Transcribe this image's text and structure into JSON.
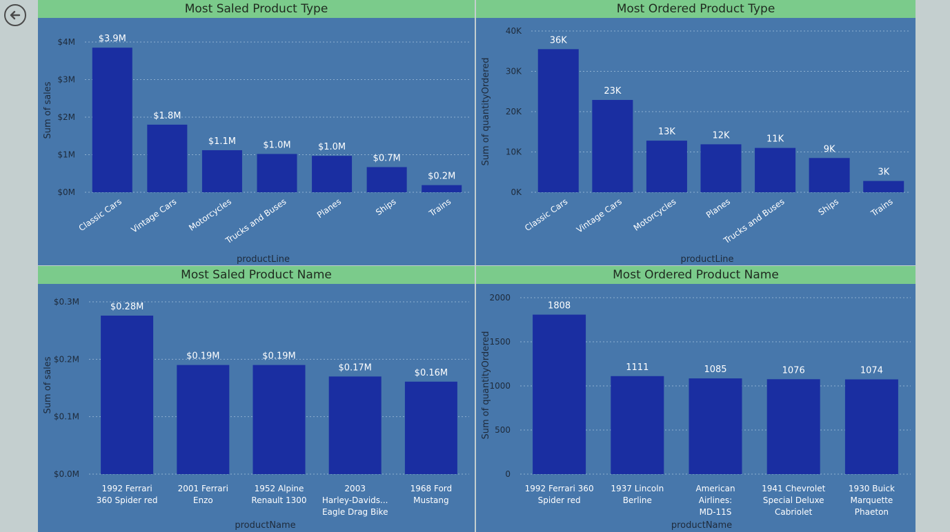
{
  "colors": {
    "bar": "#1a2ea1",
    "header": "#7bcb8b",
    "panel": "#4777ab",
    "background": "#c4cfcf"
  },
  "nav": {
    "back_icon": "back-arrow-circle-icon"
  },
  "chart_data": [
    {
      "id": "c1",
      "type": "bar",
      "title": "Most Saled Product Type",
      "xlabel": "productLine",
      "ylabel": "Sum of sales",
      "ylim": [
        0,
        4
      ],
      "yticks": [
        0,
        1,
        2,
        3,
        4
      ],
      "ytick_labels": [
        "$0M",
        "$1M",
        "$2M",
        "$3M",
        "$4M"
      ],
      "categories": [
        "Classic Cars",
        "Vintage Cars",
        "Motorcycles",
        "Trucks and Buses",
        "Planes",
        "Ships",
        "Trains"
      ],
      "values": [
        3.85,
        1.8,
        1.12,
        1.02,
        0.97,
        0.67,
        0.19
      ],
      "data_labels": [
        "$3.9M",
        "$1.8M",
        "$1.1M",
        "$1.0M",
        "$1.0M",
        "$0.7M",
        "$0.2M"
      ],
      "label_rotation": -35,
      "grid": true
    },
    {
      "id": "c2",
      "type": "bar",
      "title": "Most Ordered Product Type",
      "xlabel": "productLine",
      "ylabel": "Sum of quantityOrdered",
      "ylim": [
        0,
        40
      ],
      "yticks": [
        0,
        10,
        20,
        30,
        40
      ],
      "ytick_labels": [
        "0K",
        "10K",
        "20K",
        "30K",
        "40K"
      ],
      "categories": [
        "Classic Cars",
        "Vintage Cars",
        "Motorcycles",
        "Planes",
        "Trucks and Buses",
        "Ships",
        "Trains"
      ],
      "values": [
        35.5,
        22.9,
        12.8,
        11.9,
        11.0,
        8.5,
        2.8
      ],
      "data_labels": [
        "36K",
        "23K",
        "13K",
        "12K",
        "11K",
        "9K",
        "3K"
      ],
      "label_rotation": -35,
      "grid": true
    },
    {
      "id": "c3",
      "type": "bar",
      "title": "Most Saled Product Name",
      "xlabel": "productName",
      "ylabel": "Sum of sales",
      "ylim": [
        0,
        0.3
      ],
      "yticks": [
        0,
        0.1,
        0.2,
        0.3
      ],
      "ytick_labels": [
        "$0.0M",
        "$0.1M",
        "$0.2M",
        "$0.3M"
      ],
      "categories": [
        [
          "1992 Ferrari",
          "360 Spider red"
        ],
        [
          "2001 Ferrari",
          "Enzo"
        ],
        [
          "1952 Alpine",
          "Renault 1300"
        ],
        [
          "2003",
          "Harley-Davids...",
          "Eagle Drag Bike"
        ],
        [
          "1968 Ford",
          "Mustang"
        ]
      ],
      "values": [
        0.276,
        0.19,
        0.19,
        0.17,
        0.161
      ],
      "data_labels": [
        "$0.28M",
        "$0.19M",
        "$0.19M",
        "$0.17M",
        "$0.16M"
      ],
      "label_rotation": 0,
      "grid": true
    },
    {
      "id": "c4",
      "type": "bar",
      "title": "Most Ordered Product Name",
      "xlabel": "productName",
      "ylabel": "Sum of quantityOrdered",
      "ylim": [
        0,
        2000
      ],
      "yticks": [
        0,
        500,
        1000,
        1500,
        2000
      ],
      "ytick_labels": [
        "0",
        "500",
        "1000",
        "1500",
        "2000"
      ],
      "categories": [
        [
          "1992 Ferrari 360",
          "Spider red"
        ],
        [
          "1937 Lincoln",
          "Berline"
        ],
        [
          "American",
          "Airlines:",
          "MD-11S"
        ],
        [
          "1941 Chevrolet",
          "Special Deluxe",
          "Cabriolet"
        ],
        [
          "1930 Buick",
          "Marquette",
          "Phaeton"
        ]
      ],
      "values": [
        1808,
        1111,
        1085,
        1076,
        1074
      ],
      "data_labels": [
        "1808",
        "1111",
        "1085",
        "1076",
        "1074"
      ],
      "label_rotation": 0,
      "grid": true
    }
  ]
}
